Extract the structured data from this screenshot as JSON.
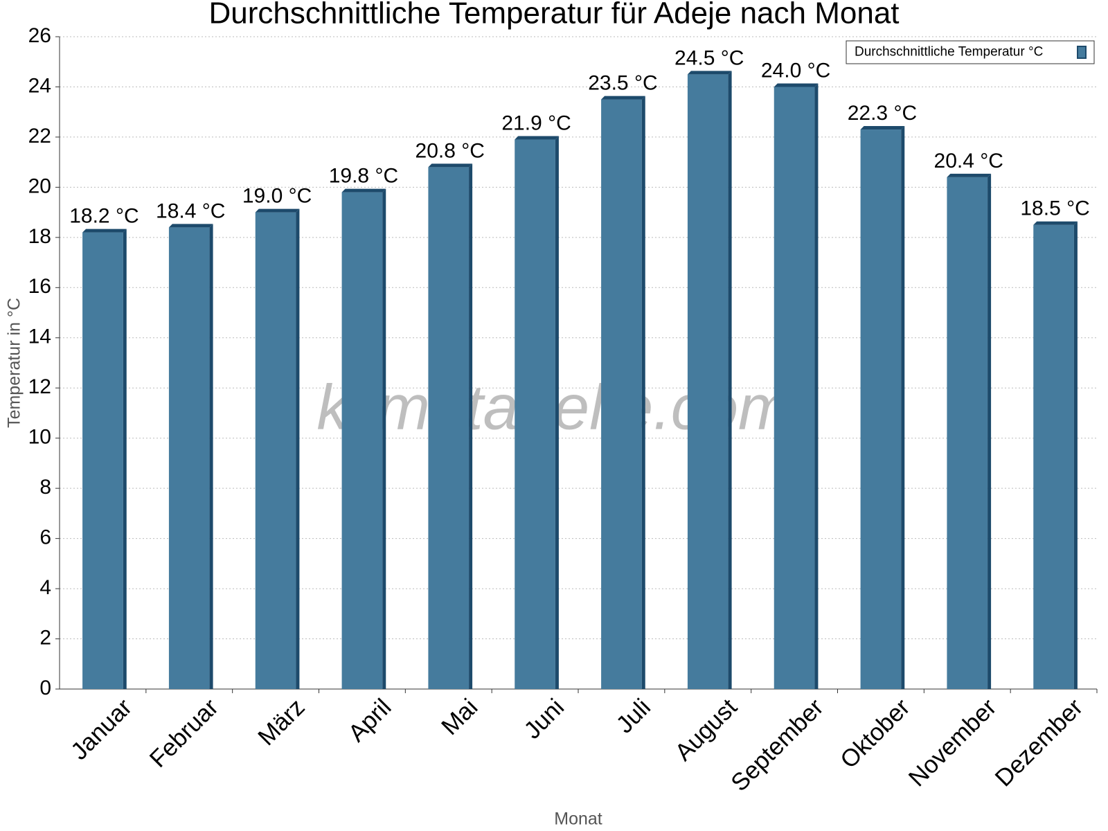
{
  "chart_data": {
    "type": "bar",
    "title": "Durchschnittliche Temperatur für Adeje nach Monat",
    "x_label": "Monat",
    "y_label": "Temperatur in °C",
    "watermark": "klimatabelle.com",
    "categories": [
      "Januar",
      "Februar",
      "März",
      "April",
      "Mai",
      "Juni",
      "Juli",
      "August",
      "September",
      "Oktober",
      "November",
      "Dezember"
    ],
    "series": [
      {
        "name": "Durchschnittliche Temperatur °C",
        "color": "#457b9d",
        "values": [
          18.2,
          18.4,
          19.0,
          19.8,
          20.8,
          21.9,
          23.5,
          24.5,
          24.0,
          22.3,
          20.4,
          18.5
        ],
        "value_labels": [
          "18.2 °C",
          "18.4 °C",
          "19.0 °C",
          "19.8 °C",
          "20.8 °C",
          "21.9 °C",
          "23.5 °C",
          "24.5 °C",
          "24.0 °C",
          "22.3 °C",
          "20.4 °C",
          "18.5 °C"
        ]
      }
    ],
    "ylim": [
      0,
      26
    ],
    "yticks": [
      0,
      2,
      4,
      6,
      8,
      10,
      12,
      14,
      16,
      18,
      20,
      22,
      24,
      26
    ],
    "grid": true,
    "legend": "upper right"
  }
}
